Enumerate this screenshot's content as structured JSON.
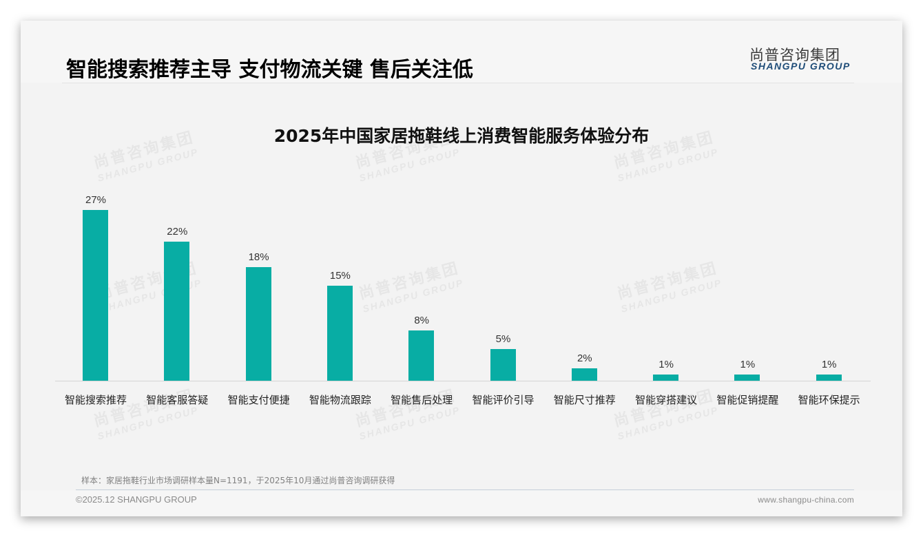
{
  "header": {
    "title": "智能搜索推荐主导 支付物流关键 售后关注低",
    "logo_cn": "尚普咨询集团",
    "logo_en": "SHANGPU GROUP"
  },
  "watermark": {
    "cn": "尚普咨询集团",
    "en": "SHANGPU GROUP"
  },
  "chart_data": {
    "type": "bar",
    "title": "2025年中国家居拖鞋线上消费智能服务体验分布",
    "categories": [
      "智能搜索推荐",
      "智能客服答疑",
      "智能支付便捷",
      "智能物流跟踪",
      "智能售后处理",
      "智能评价引导",
      "智能尺寸推荐",
      "智能穿搭建议",
      "智能促销提醒",
      "智能环保提示"
    ],
    "values": [
      27,
      22,
      18,
      15,
      8,
      5,
      2,
      1,
      1,
      1
    ],
    "labels": [
      "27%",
      "22%",
      "18%",
      "15%",
      "8%",
      "5%",
      "2%",
      "1%",
      "1%",
      "1%"
    ],
    "xlabel": "",
    "ylabel": "",
    "ylim": [
      0,
      30
    ],
    "grid": false,
    "legend": "none",
    "bar_color": "#08ada4"
  },
  "footer": {
    "note": "样本：家居拖鞋行业市场调研样本量N=1191，于2025年10月通过尚普咨询调研获得",
    "copyright": "©2025.12 SHANGPU GROUP",
    "website": "www.shangpu-china.com"
  }
}
